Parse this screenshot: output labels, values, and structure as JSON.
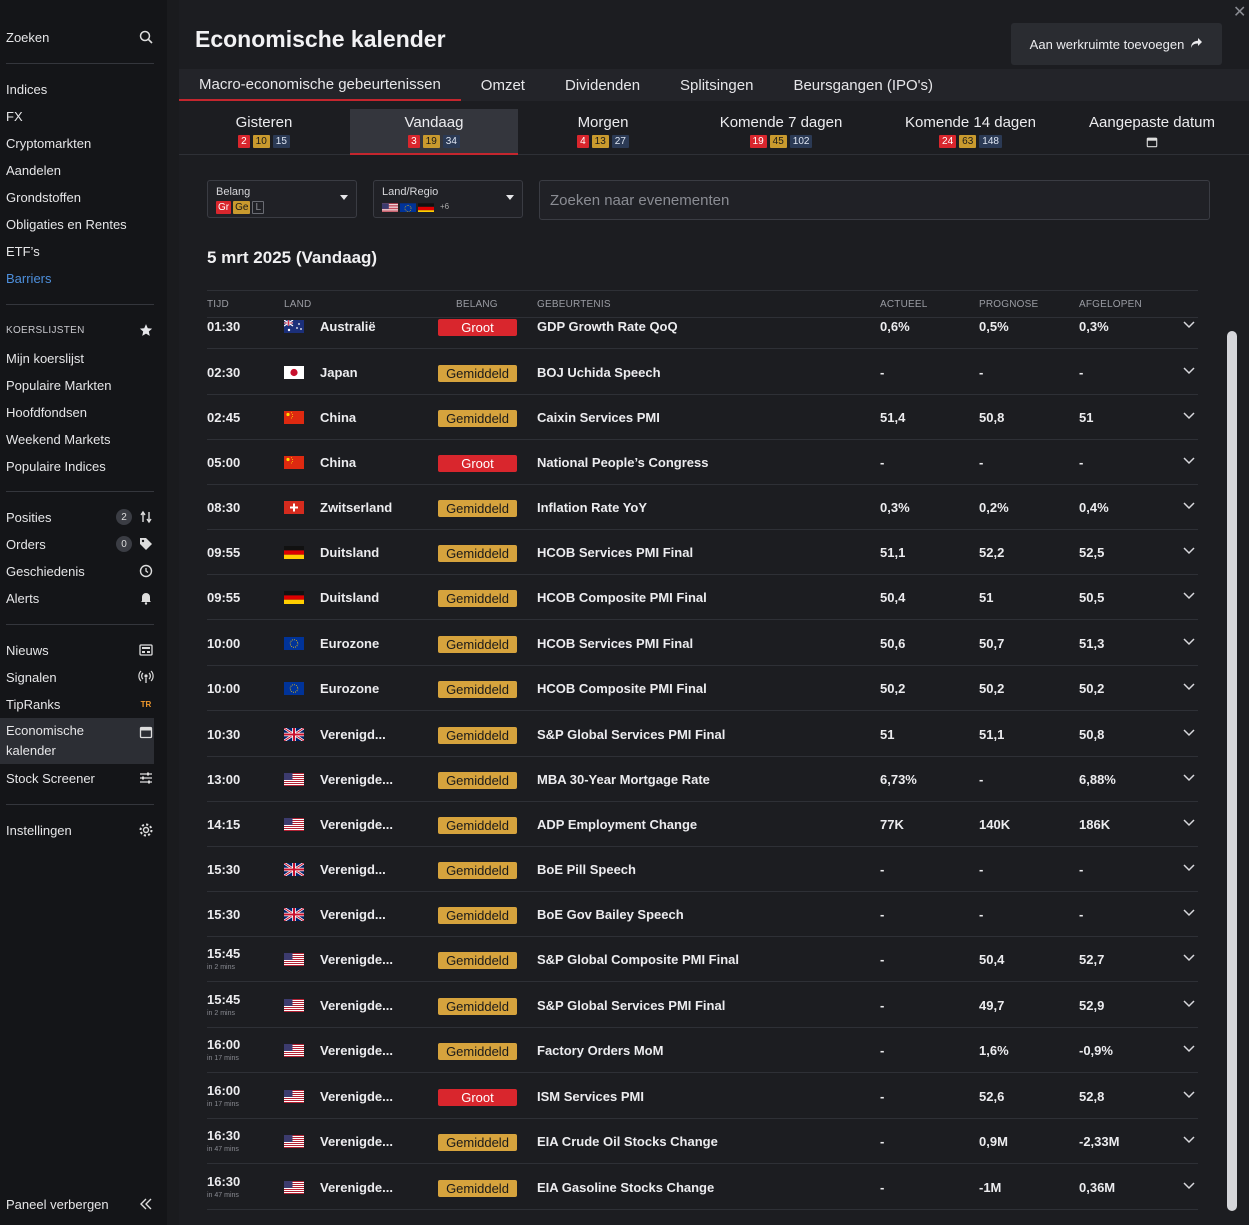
{
  "sidebar": {
    "search_label": "Zoeken",
    "markets": [
      "Indices",
      "FX",
      "Cryptomarkten",
      "Aandelen",
      "Grondstoffen",
      "Obligaties en Rentes",
      "ETF’s",
      "Barriers"
    ],
    "watchlists_header": "KOERSLIJSTEN",
    "watchlists": [
      "Mijn koerslijst",
      "Populaire Markten",
      "Hoofdfondsen",
      "Weekend Markets",
      "Populaire Indices"
    ],
    "trading": [
      {
        "label": "Posities",
        "count": "2"
      },
      {
        "label": "Orders",
        "count": "0"
      },
      {
        "label": "Geschiedenis"
      },
      {
        "label": "Alerts"
      }
    ],
    "tools": [
      {
        "label": "Nieuws"
      },
      {
        "label": "Signalen"
      },
      {
        "label": "TipRanks"
      },
      {
        "label": "Economische kalender",
        "line1": "Economische",
        "line2": "kalender"
      },
      {
        "label": "Stock Screener"
      }
    ],
    "settings_label": "Instellingen",
    "hide_panel_label": "Paneel verbergen",
    "tipranks_icon_text": "TR"
  },
  "header": {
    "title": "Economische kalender",
    "workspace_button": "Aan werkruimte toevoegen"
  },
  "type_tabs": [
    "Macro-economische gebeurtenissen",
    "Omzet",
    "Dividenden",
    "Splitsingen",
    "Beursgangen (IPO's)"
  ],
  "day_tabs": [
    {
      "label": "Gisteren",
      "counts": [
        "2",
        "10",
        "15"
      ]
    },
    {
      "label": "Vandaag",
      "counts": [
        "3",
        "19",
        "34"
      ]
    },
    {
      "label": "Morgen",
      "counts": [
        "4",
        "13",
        "27"
      ]
    },
    {
      "label": "Komende 7 dagen",
      "counts": [
        "19",
        "45",
        "102"
      ]
    },
    {
      "label": "Komende 14 dagen",
      "counts": [
        "24",
        "63",
        "148"
      ]
    },
    {
      "label": "Aangepaste datum"
    }
  ],
  "filters": {
    "importance_label": "Belang",
    "importance_tags": [
      "Gr",
      "Ge",
      "L"
    ],
    "region_label": "Land/Regio",
    "region_more": "+6",
    "search_placeholder": "Zoeken naar evenementen"
  },
  "date_heading": "5 mrt 2025 (Vandaag)",
  "columns": [
    "TIJD",
    "LAND",
    "BELANG",
    "GEBEURTENIS",
    "ACTUEEL",
    "PROGNOSE",
    "AFGELOPEN"
  ],
  "events": [
    {
      "time": "01:30",
      "sub": "",
      "flag": "au",
      "country": "Australië",
      "importance": "Groot",
      "level": "high",
      "event": "GDP Growth Rate QoQ",
      "actual": "0,6%",
      "forecast": "0,5%",
      "previous": "0,3%"
    },
    {
      "time": "02:30",
      "sub": "",
      "flag": "jp",
      "country": "Japan",
      "importance": "Gemiddeld",
      "level": "medium",
      "event": "BOJ Uchida Speech",
      "actual": "-",
      "forecast": "-",
      "previous": "-"
    },
    {
      "time": "02:45",
      "sub": "",
      "flag": "cn",
      "country": "China",
      "importance": "Gemiddeld",
      "level": "medium",
      "event": "Caixin Services PMI",
      "actual": "51,4",
      "forecast": "50,8",
      "previous": "51"
    },
    {
      "time": "05:00",
      "sub": "",
      "flag": "cn",
      "country": "China",
      "importance": "Groot",
      "level": "high",
      "event": "National People’s Congress",
      "actual": "-",
      "forecast": "-",
      "previous": "-"
    },
    {
      "time": "08:30",
      "sub": "",
      "flag": "ch",
      "country": "Zwitserland",
      "importance": "Gemiddeld",
      "level": "medium",
      "event": "Inflation Rate YoY",
      "actual": "0,3%",
      "forecast": "0,2%",
      "previous": "0,4%"
    },
    {
      "time": "09:55",
      "sub": "",
      "flag": "de",
      "country": "Duitsland",
      "importance": "Gemiddeld",
      "level": "medium",
      "event": "HCOB Services PMI Final",
      "actual": "51,1",
      "forecast": "52,2",
      "previous": "52,5"
    },
    {
      "time": "09:55",
      "sub": "",
      "flag": "de",
      "country": "Duitsland",
      "importance": "Gemiddeld",
      "level": "medium",
      "event": "HCOB Composite PMI Final",
      "actual": "50,4",
      "forecast": "51",
      "previous": "50,5"
    },
    {
      "time": "10:00",
      "sub": "",
      "flag": "eu",
      "country": "Eurozone",
      "importance": "Gemiddeld",
      "level": "medium",
      "event": "HCOB Services PMI Final",
      "actual": "50,6",
      "forecast": "50,7",
      "previous": "51,3"
    },
    {
      "time": "10:00",
      "sub": "",
      "flag": "eu",
      "country": "Eurozone",
      "importance": "Gemiddeld",
      "level": "medium",
      "event": "HCOB Composite PMI Final",
      "actual": "50,2",
      "forecast": "50,2",
      "previous": "50,2"
    },
    {
      "time": "10:30",
      "sub": "",
      "flag": "gb",
      "country": "Verenigd...",
      "importance": "Gemiddeld",
      "level": "medium",
      "event": "S&P Global Services PMI Final",
      "actual": "51",
      "forecast": "51,1",
      "previous": "50,8"
    },
    {
      "time": "13:00",
      "sub": "",
      "flag": "us",
      "country": "Verenigde...",
      "importance": "Gemiddeld",
      "level": "medium",
      "event": "MBA 30-Year Mortgage Rate",
      "actual": "6,73%",
      "forecast": "-",
      "previous": "6,88%"
    },
    {
      "time": "14:15",
      "sub": "",
      "flag": "us",
      "country": "Verenigde...",
      "importance": "Gemiddeld",
      "level": "medium",
      "event": "ADP Employment Change",
      "actual": "77K",
      "forecast": "140K",
      "previous": "186K"
    },
    {
      "time": "15:30",
      "sub": "",
      "flag": "gb",
      "country": "Verenigd...",
      "importance": "Gemiddeld",
      "level": "medium",
      "event": "BoE Pill Speech",
      "actual": "-",
      "forecast": "-",
      "previous": "-"
    },
    {
      "time": "15:30",
      "sub": "",
      "flag": "gb",
      "country": "Verenigd...",
      "importance": "Gemiddeld",
      "level": "medium",
      "event": "BoE Gov Bailey Speech",
      "actual": "-",
      "forecast": "-",
      "previous": "-"
    },
    {
      "time": "15:45",
      "sub": "in 2 mins",
      "flag": "us",
      "country": "Verenigde...",
      "importance": "Gemiddeld",
      "level": "medium",
      "event": "S&P Global Composite PMI Final",
      "actual": "-",
      "forecast": "50,4",
      "previous": "52,7"
    },
    {
      "time": "15:45",
      "sub": "in 2 mins",
      "flag": "us",
      "country": "Verenigde...",
      "importance": "Gemiddeld",
      "level": "medium",
      "event": "S&P Global Services PMI Final",
      "actual": "-",
      "forecast": "49,7",
      "previous": "52,9"
    },
    {
      "time": "16:00",
      "sub": "in 17 mins",
      "flag": "us",
      "country": "Verenigde...",
      "importance": "Gemiddeld",
      "level": "medium",
      "event": "Factory Orders MoM",
      "actual": "-",
      "forecast": "1,6%",
      "previous": "-0,9%"
    },
    {
      "time": "16:00",
      "sub": "in 17 mins",
      "flag": "us",
      "country": "Verenigde...",
      "importance": "Groot",
      "level": "high",
      "event": "ISM Services PMI",
      "actual": "-",
      "forecast": "52,6",
      "previous": "52,8"
    },
    {
      "time": "16:30",
      "sub": "in 47 mins",
      "flag": "us",
      "country": "Verenigde...",
      "importance": "Gemiddeld",
      "level": "medium",
      "event": "EIA Crude Oil Stocks Change",
      "actual": "-",
      "forecast": "0,9M",
      "previous": "-2,33M"
    },
    {
      "time": "16:30",
      "sub": "in 47 mins",
      "flag": "us",
      "country": "Verenigde...",
      "importance": "Gemiddeld",
      "level": "medium",
      "event": "EIA Gasoline Stocks Change",
      "actual": "-",
      "forecast": "-1M",
      "previous": "0,36M"
    }
  ],
  "colors": {
    "accent_red": "#c4262e",
    "high": "#d9262d",
    "medium": "#d6a33d",
    "link_blue": "#4d8fdc"
  }
}
